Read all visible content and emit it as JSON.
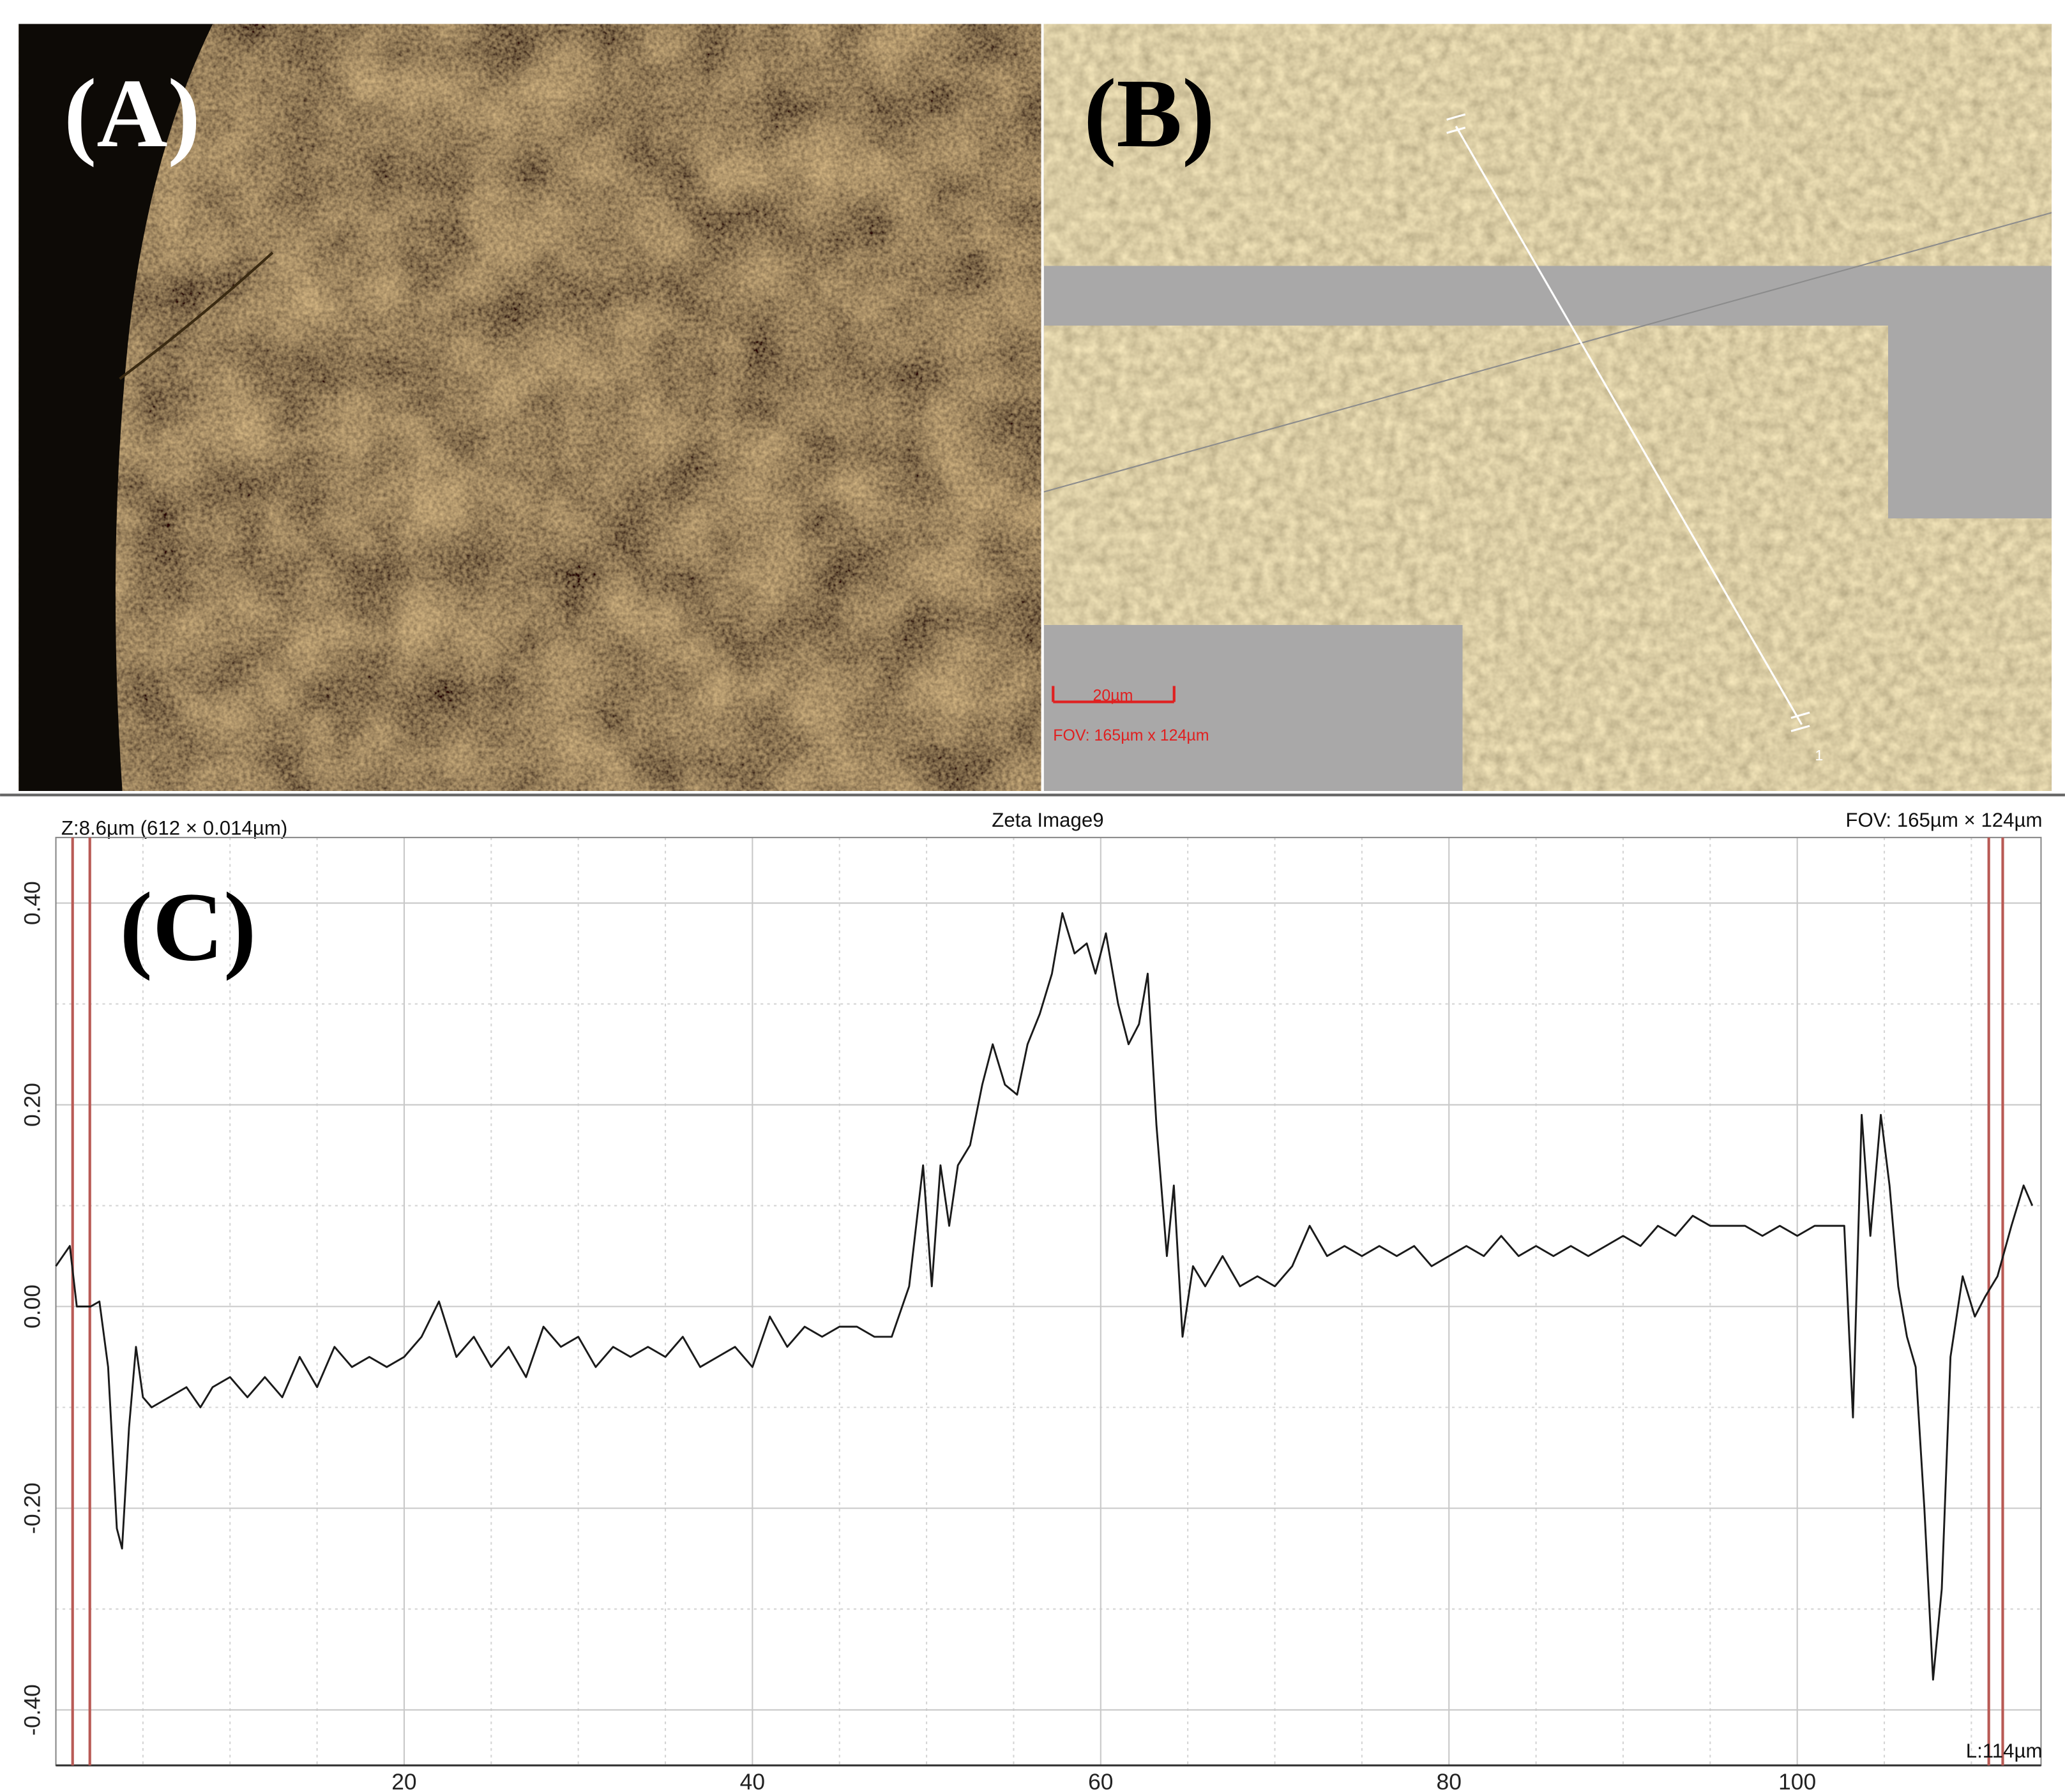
{
  "panels": {
    "a": {
      "label": "(A)"
    },
    "b": {
      "label": "(B)",
      "scale_bar": "20µm",
      "fov": "FOV: 165µm x 124µm",
      "marker": "1"
    }
  },
  "chart_data": {
    "type": "line",
    "label": "(C)",
    "title": "Zeta Image9",
    "header_left": "Z:8.6µm (612 × 0.014µm)",
    "header_right": "FOV: 165µm × 124µm",
    "length_label": "L:114µm",
    "x": [
      0,
      0.8,
      1.2,
      2,
      2.5,
      3,
      3.5,
      3.8,
      4.2,
      4.6,
      5,
      5.5,
      6.5,
      7.5,
      8.3,
      9,
      10,
      11,
      12,
      13,
      14,
      15,
      16,
      17,
      18,
      19,
      20,
      21,
      22,
      23,
      24,
      25,
      26,
      27,
      28,
      29,
      30,
      31,
      32,
      33,
      34,
      35,
      36,
      37,
      38,
      39,
      40,
      41,
      42,
      43,
      44,
      45,
      46,
      47,
      48,
      49,
      49.8,
      50.3,
      50.8,
      51.3,
      51.8,
      52.5,
      53.2,
      53.8,
      54.5,
      55.2,
      55.8,
      56.5,
      57.2,
      57.8,
      58.5,
      59.2,
      59.7,
      60.3,
      61,
      61.6,
      62.2,
      62.7,
      63.2,
      63.8,
      64.2,
      64.7,
      65.3,
      66,
      67,
      68,
      69,
      70,
      71,
      72,
      73,
      74,
      75,
      76,
      77,
      78,
      79,
      80,
      81,
      82,
      83,
      84,
      85,
      86,
      87,
      88,
      89,
      90,
      91,
      92,
      93,
      94,
      95,
      96,
      97,
      98,
      99,
      100,
      101,
      102,
      102.7,
      103.2,
      103.7,
      104.2,
      104.8,
      105.3,
      105.8,
      106.3,
      106.8,
      107.3,
      107.8,
      108.3,
      108.8,
      109.5,
      110.2,
      110.8,
      111.5,
      112.3,
      113,
      113.5
    ],
    "series": [
      {
        "color": "#1a1a1a",
        "values": [
          0.04,
          0.06,
          0.0,
          0.0,
          0.005,
          -0.06,
          -0.22,
          -0.24,
          -0.12,
          -0.04,
          -0.09,
          -0.1,
          -0.09,
          -0.08,
          -0.1,
          -0.08,
          -0.07,
          -0.09,
          -0.07,
          -0.09,
          -0.05,
          -0.08,
          -0.04,
          -0.06,
          -0.05,
          -0.06,
          -0.05,
          -0.03,
          0.005,
          -0.05,
          -0.03,
          -0.06,
          -0.04,
          -0.07,
          -0.02,
          -0.04,
          -0.03,
          -0.06,
          -0.04,
          -0.05,
          -0.04,
          -0.05,
          -0.03,
          -0.06,
          -0.05,
          -0.04,
          -0.06,
          -0.01,
          -0.04,
          -0.02,
          -0.03,
          -0.02,
          -0.02,
          -0.03,
          -0.03,
          0.02,
          0.14,
          0.02,
          0.14,
          0.08,
          0.14,
          0.16,
          0.22,
          0.26,
          0.22,
          0.21,
          0.26,
          0.29,
          0.33,
          0.39,
          0.35,
          0.36,
          0.33,
          0.37,
          0.3,
          0.26,
          0.28,
          0.33,
          0.18,
          0.05,
          0.12,
          -0.03,
          0.04,
          0.02,
          0.05,
          0.02,
          0.03,
          0.02,
          0.04,
          0.08,
          0.05,
          0.06,
          0.05,
          0.06,
          0.05,
          0.06,
          0.04,
          0.05,
          0.06,
          0.05,
          0.07,
          0.05,
          0.06,
          0.05,
          0.06,
          0.05,
          0.06,
          0.07,
          0.06,
          0.08,
          0.07,
          0.09,
          0.08,
          0.08,
          0.08,
          0.07,
          0.08,
          0.07,
          0.08,
          0.08,
          0.08,
          -0.11,
          0.19,
          0.07,
          0.19,
          0.12,
          0.02,
          -0.03,
          -0.06,
          -0.2,
          -0.37,
          -0.28,
          -0.05,
          0.03,
          -0.01,
          0.01,
          0.03,
          0.08,
          0.12,
          0.1
        ]
      }
    ],
    "xlim": [
      0,
      114
    ],
    "ylim": [
      -0.455,
      0.465
    ],
    "xticks": [
      20,
      40,
      60,
      80,
      100
    ],
    "minor_xticks": [
      5,
      10,
      15,
      25,
      30,
      35,
      45,
      50,
      55,
      65,
      70,
      75,
      85,
      90,
      95,
      105,
      110
    ],
    "yticks": [
      {
        "value": -0.4,
        "label": "-0.40"
      },
      {
        "value": -0.2,
        "label": "-0.20"
      },
      {
        "value": 0,
        "label": "0.00"
      },
      {
        "value": 0.2,
        "label": "0.20"
      },
      {
        "value": 0.4,
        "label": "0.40"
      }
    ],
    "minor_yticks": [
      -0.3,
      -0.1,
      0.1,
      0.3
    ],
    "cursors": [
      0.96,
      1.95,
      111.0,
      111.8
    ],
    "cursor_color": "#b85a55",
    "grid": true
  }
}
